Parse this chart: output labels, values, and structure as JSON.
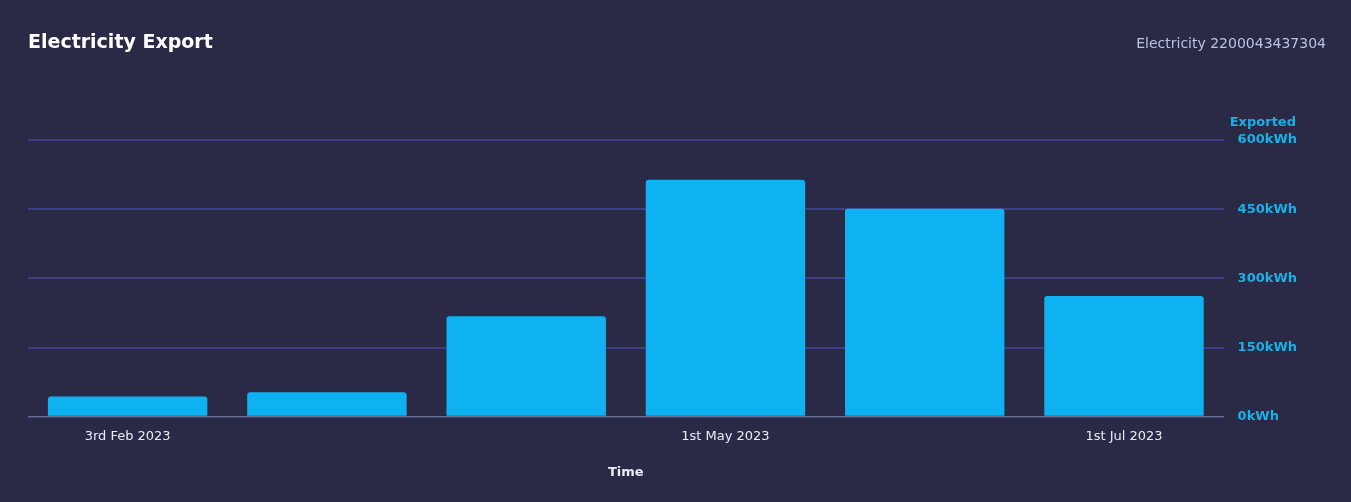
{
  "chart_data": {
    "type": "bar",
    "title": "Electricity Export",
    "subtitle": "Electricity 2200043437304",
    "xlabel": "Time",
    "ylabel": "Exported",
    "categories": [
      "3rd Feb 2023",
      null,
      null,
      "1st May 2023",
      null,
      "1st Jul 2023"
    ],
    "values": [
      44,
      53,
      218,
      514,
      451,
      262
    ],
    "color": "#0fb2f0",
    "ylim": [
      0,
      600
    ],
    "yticks": [
      {
        "value": 0,
        "label": "0kWh"
      },
      {
        "value": 150,
        "label": "150kWh"
      },
      {
        "value": 300,
        "label": "300kWh"
      },
      {
        "value": 450,
        "label": "450kWh"
      },
      {
        "value": 600,
        "label": "600kWh"
      }
    ],
    "grid": "y",
    "legend": false
  }
}
